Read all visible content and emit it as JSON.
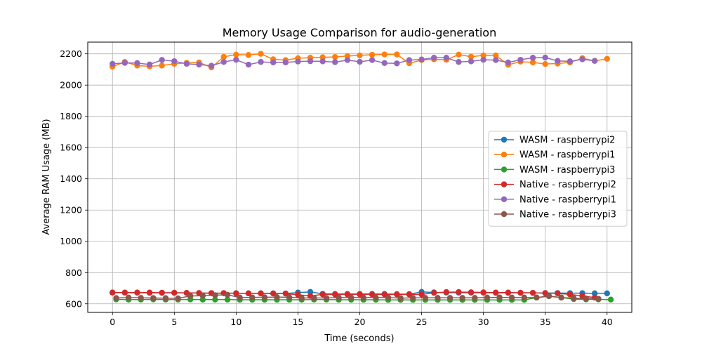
{
  "chart_data": {
    "type": "line",
    "title": "Memory Usage Comparison for audio-generation",
    "xlabel": "Time (seconds)",
    "ylabel": "Average RAM Usage (MB)",
    "xlim": [
      -2,
      42
    ],
    "ylim": [
      545,
      2275
    ],
    "xticks": [
      0,
      5,
      10,
      15,
      20,
      25,
      30,
      35,
      40
    ],
    "yticks": [
      600,
      800,
      1000,
      1200,
      1400,
      1600,
      1800,
      2000,
      2200
    ],
    "grid": true,
    "legend_position": "center-right",
    "series": [
      {
        "name": "WASM - raspberrypi2",
        "color": "#1f77b4",
        "x": [
          0,
          1,
          2,
          3,
          4,
          5,
          6,
          7,
          8,
          9,
          10,
          11,
          12,
          13,
          14,
          15,
          16,
          17,
          18,
          19,
          20,
          21,
          22,
          23,
          24,
          25,
          26,
          27,
          28,
          29,
          30,
          31,
          32,
          33,
          34,
          35,
          36,
          37,
          38,
          39,
          40
        ],
        "y": [
          672,
          671,
          671,
          670,
          670,
          670,
          669,
          669,
          668,
          668,
          668,
          667,
          667,
          667,
          666,
          672,
          676,
          664,
          663,
          663,
          663,
          663,
          663,
          662,
          662,
          676,
          673,
          672,
          671,
          671,
          671,
          670,
          670,
          670,
          670,
          669,
          669,
          668,
          668,
          667,
          667
        ]
      },
      {
        "name": "WASM - raspberrypi1",
        "color": "#ff7f0e",
        "x": [
          0,
          1,
          2,
          3,
          4,
          5,
          6,
          7,
          8,
          9,
          10,
          11,
          12,
          13,
          14,
          15,
          16,
          17,
          18,
          19,
          20,
          21,
          22,
          23,
          24,
          25,
          26,
          27,
          28,
          29,
          30,
          31,
          32,
          33,
          34,
          35,
          36,
          37,
          38,
          39,
          40
        ],
        "y": [
          2118,
          2148,
          2125,
          2120,
          2125,
          2136,
          2142,
          2145,
          2113,
          2181,
          2195,
          2193,
          2200,
          2165,
          2160,
          2172,
          2175,
          2178,
          2180,
          2186,
          2190,
          2194,
          2196,
          2196,
          2140,
          2160,
          2165,
          2162,
          2195,
          2182,
          2190,
          2190,
          2130,
          2150,
          2145,
          2135,
          2138,
          2145,
          2172,
          2155,
          2168
        ]
      },
      {
        "name": "WASM - raspberrypi3",
        "color": "#2ca02c",
        "x": [
          0.3,
          1.3,
          2.3,
          3.3,
          4.3,
          5.3,
          6.3,
          7.3,
          8.3,
          9.3,
          10.3,
          11.3,
          12.3,
          13.3,
          14.3,
          15.3,
          16.3,
          17.3,
          18.3,
          19.3,
          20.3,
          21.3,
          22.3,
          23.3,
          24.3,
          25.3,
          26.3,
          27.3,
          28.3,
          29.3,
          30.3,
          31.3,
          32.3,
          33.3,
          34.3,
          35.3,
          36.3,
          37.3,
          38.3,
          39.3,
          40.3
        ],
        "y": [
          628,
          627,
          627,
          628,
          627,
          627,
          628,
          627,
          627,
          627,
          626,
          626,
          626,
          626,
          626,
          626,
          627,
          627,
          626,
          626,
          626,
          626,
          625,
          625,
          625,
          625,
          625,
          625,
          625,
          625,
          625,
          625,
          625,
          625,
          640,
          648,
          640,
          630,
          628,
          628,
          627
        ]
      },
      {
        "name": "Native - raspberrypi2",
        "color": "#d62728",
        "x": [
          0,
          1,
          2,
          3,
          4,
          5,
          6,
          7,
          8,
          9,
          10,
          11,
          12,
          13,
          14,
          15,
          16,
          17,
          18,
          19,
          20,
          21,
          22,
          23,
          24,
          25,
          26,
          27,
          28,
          29,
          30,
          31,
          32,
          33,
          34,
          35,
          36,
          37,
          38,
          39
        ],
        "y": [
          672,
          672,
          672,
          672,
          671,
          671,
          670,
          669,
          668,
          668,
          667,
          667,
          667,
          666,
          666,
          658,
          650,
          660,
          660,
          660,
          660,
          660,
          660,
          660,
          660,
          660,
          670,
          675,
          675,
          674,
          673,
          672,
          672,
          671,
          670,
          668,
          667,
          660,
          650,
          640
        ]
      },
      {
        "name": "Native - raspberrypi1",
        "color": "#9467bd",
        "x": [
          0,
          1,
          2,
          3,
          4,
          5,
          6,
          7,
          8,
          9,
          10,
          11,
          12,
          13,
          14,
          15,
          16,
          17,
          18,
          19,
          20,
          21,
          22,
          23,
          24,
          25,
          26,
          27,
          28,
          29,
          30,
          31,
          32,
          33,
          34,
          35,
          36,
          37,
          38,
          39
        ],
        "y": [
          2136,
          2142,
          2141,
          2132,
          2161,
          2153,
          2136,
          2131,
          2124,
          2148,
          2162,
          2131,
          2148,
          2145,
          2145,
          2151,
          2153,
          2152,
          2147,
          2160,
          2149,
          2160,
          2141,
          2139,
          2160,
          2164,
          2175,
          2175,
          2148,
          2152,
          2162,
          2160,
          2145,
          2162,
          2175,
          2176,
          2155,
          2152,
          2165,
          2155
        ]
      },
      {
        "name": "Native - raspberrypi3",
        "color": "#8c564b",
        "x": [
          0.3,
          1.3,
          2.3,
          3.3,
          4.3,
          5.3,
          6.3,
          7.3,
          8.3,
          9.3,
          10.3,
          11.3,
          12.3,
          13.3,
          14.3,
          15.3,
          16.3,
          17.3,
          18.3,
          19.3,
          20.3,
          21.3,
          22.3,
          23.3,
          24.3,
          25.3,
          26.3,
          27.3,
          28.3,
          29.3,
          30.3,
          31.3,
          32.3,
          33.3,
          34.3,
          35.3,
          36.3,
          37.3,
          38.3,
          39.3
        ],
        "y": [
          637,
          640,
          638,
          637,
          636,
          635,
          650,
          652,
          655,
          658,
          640,
          641,
          642,
          643,
          642,
          637,
          637,
          637,
          640,
          640,
          640,
          640,
          640,
          636,
          638,
          638,
          638,
          638,
          638,
          638,
          640,
          641,
          640,
          640,
          640,
          650,
          640,
          636,
          634,
          632
        ]
      }
    ]
  }
}
